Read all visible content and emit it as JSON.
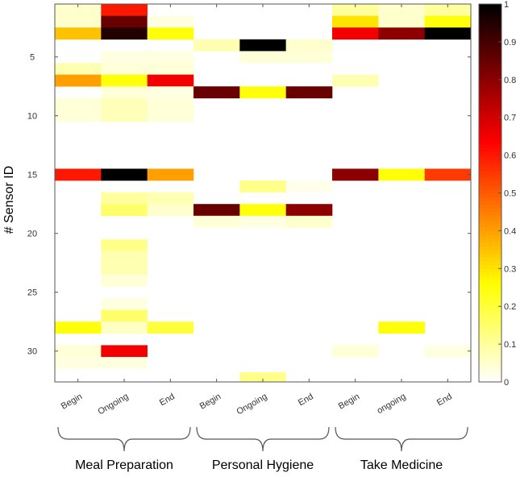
{
  "chart_data": {
    "type": "heatmap",
    "title": "",
    "ylabel": "# Sensor ID",
    "x_categories": [
      "Begin",
      "Ongoing",
      "End",
      "Begin",
      "Ongoing",
      "End",
      "Begin",
      "ongoing",
      "End"
    ],
    "groups": [
      {
        "label": "Meal Preparation",
        "span": [
          0,
          2
        ]
      },
      {
        "label": "Personal Hygiene",
        "span": [
          3,
          5
        ]
      },
      {
        "label": "Take Medicine",
        "span": [
          6,
          8
        ]
      }
    ],
    "y_range": [
      1,
      32
    ],
    "y_ticks": [
      5,
      10,
      15,
      20,
      25,
      30
    ],
    "y_tick_labels": [
      "5",
      "10",
      "15",
      "20",
      "25",
      "30"
    ],
    "colorbar": {
      "colormap": "hot (reversed)",
      "range": [
        0,
        1
      ],
      "ticks": [
        0,
        0.1,
        0.2,
        0.3,
        0.4,
        0.5,
        0.6,
        0.7,
        0.8,
        0.9,
        1
      ],
      "tick_labels": [
        "0",
        "0.1",
        "0.2",
        "0.3",
        "0.4",
        "0.5",
        "0.6",
        "0.7",
        "0.8",
        "0.9",
        "1"
      ]
    },
    "values": [
      [
        0.05,
        0.6,
        0.0,
        0.0,
        0.0,
        0.0,
        0.1,
        0.05,
        0.1
      ],
      [
        0.05,
        0.85,
        0.03,
        0.0,
        0.0,
        0.0,
        0.3,
        0.05,
        0.25
      ],
      [
        0.35,
        0.95,
        0.25,
        0.0,
        0.0,
        0.0,
        0.65,
        0.8,
        1.0
      ],
      [
        0.0,
        0.0,
        0.0,
        0.08,
        1.0,
        0.05,
        0.0,
        0.0,
        0.0
      ],
      [
        0.0,
        0.03,
        0.03,
        0.0,
        0.04,
        0.04,
        0.0,
        0.0,
        0.0
      ],
      [
        0.08,
        0.04,
        0.04,
        0.0,
        0.0,
        0.0,
        0.0,
        0.0,
        0.0
      ],
      [
        0.4,
        0.25,
        0.65,
        0.0,
        0.0,
        0.0,
        0.08,
        0.0,
        0.0
      ],
      [
        0.0,
        0.04,
        0.03,
        0.85,
        0.25,
        0.85,
        0.0,
        0.0,
        0.0
      ],
      [
        0.04,
        0.07,
        0.04,
        0.0,
        0.0,
        0.0,
        0.0,
        0.0,
        0.0
      ],
      [
        0.04,
        0.07,
        0.04,
        0.0,
        0.0,
        0.0,
        0.0,
        0.0,
        0.0
      ],
      [
        0.0,
        0.0,
        0.0,
        0.0,
        0.0,
        0.0,
        0.0,
        0.0,
        0.0
      ],
      [
        0.0,
        0.0,
        0.0,
        0.0,
        0.0,
        0.0,
        0.0,
        0.0,
        0.0
      ],
      [
        0.0,
        0.0,
        0.0,
        0.0,
        0.0,
        0.0,
        0.0,
        0.0,
        0.0
      ],
      [
        0.0,
        0.0,
        0.0,
        0.0,
        0.0,
        0.0,
        0.0,
        0.0,
        0.0
      ],
      [
        0.6,
        1.0,
        0.4,
        0.0,
        0.0,
        0.0,
        0.8,
        0.25,
        0.55
      ],
      [
        0.0,
        0.0,
        0.0,
        0.0,
        0.12,
        0.02,
        0.0,
        0.0,
        0.0
      ],
      [
        0.0,
        0.1,
        0.08,
        0.0,
        0.0,
        0.0,
        0.0,
        0.0,
        0.0
      ],
      [
        0.0,
        0.15,
        0.05,
        0.85,
        0.25,
        0.8,
        0.0,
        0.0,
        0.0
      ],
      [
        0.0,
        0.0,
        0.0,
        0.04,
        0.03,
        0.05,
        0.0,
        0.0,
        0.0
      ],
      [
        0.0,
        0.0,
        0.0,
        0.0,
        0.0,
        0.0,
        0.0,
        0.0,
        0.0
      ],
      [
        0.0,
        0.12,
        0.0,
        0.0,
        0.0,
        0.0,
        0.0,
        0.0,
        0.0
      ],
      [
        0.0,
        0.08,
        0.0,
        0.0,
        0.0,
        0.0,
        0.0,
        0.0,
        0.0
      ],
      [
        0.0,
        0.08,
        0.0,
        0.0,
        0.0,
        0.0,
        0.0,
        0.0,
        0.0
      ],
      [
        0.0,
        0.04,
        0.0,
        0.0,
        0.0,
        0.0,
        0.0,
        0.0,
        0.0
      ],
      [
        0.0,
        0.0,
        0.0,
        0.0,
        0.0,
        0.0,
        0.0,
        0.0,
        0.0
      ],
      [
        0.0,
        0.03,
        0.0,
        0.0,
        0.0,
        0.0,
        0.0,
        0.0,
        0.0
      ],
      [
        0.0,
        0.15,
        0.0,
        0.0,
        0.0,
        0.0,
        0.0,
        0.0,
        0.0
      ],
      [
        0.25,
        0.06,
        0.2,
        0.0,
        0.0,
        0.0,
        0.0,
        0.25,
        0.0
      ],
      [
        0.0,
        0.0,
        0.0,
        0.0,
        0.0,
        0.0,
        0.0,
        0.0,
        0.0
      ],
      [
        0.04,
        0.65,
        0.0,
        0.0,
        0.0,
        0.0,
        0.04,
        0.0,
        0.03
      ],
      [
        0.03,
        0.03,
        0.0,
        0.0,
        0.0,
        0.0,
        0.0,
        0.0,
        0.0
      ],
      [
        0.0,
        0.0,
        0.0,
        0.0,
        0.0,
        0.0,
        0.0,
        0.0,
        0.0
      ]
    ],
    "extra_cells": [
      {
        "col": 4,
        "y": 32.3,
        "value": 0.12
      }
    ]
  }
}
